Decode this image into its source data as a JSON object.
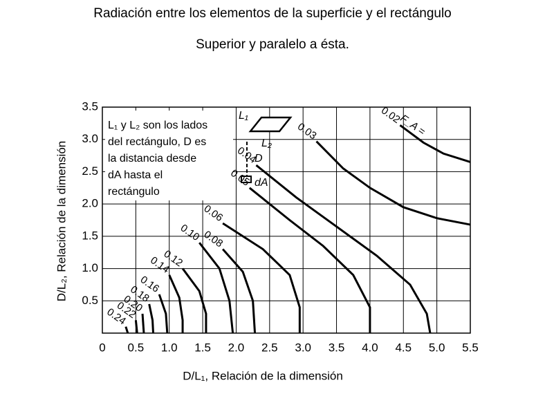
{
  "chart_data": {
    "type": "contour",
    "title": "Radiación entre los elementos de la superficie y el rectángulo",
    "subtitle": "Superior y paralelo a ésta.",
    "x_label": "D/L₁, Relación de la dimensión",
    "y_label": "D/L₂, Relación de la dimensión",
    "annotation": [
      "L₁ y L₂ son los lados",
      "del rectángulo, D es",
      "la distancia desde",
      "dA hasta el",
      "rectángulo"
    ],
    "diagram_labels": [
      "L₁",
      "L₂",
      "D",
      "dA"
    ],
    "curve_prefix": "F_A =",
    "color": "#000000",
    "grid": true,
    "xlim": [
      0,
      5.5
    ],
    "ylim": [
      0,
      3.5
    ],
    "xticks": [
      0,
      0.5,
      {
        "value": 1,
        "label": "1.0"
      },
      1.5,
      {
        "value": 2,
        "label": "2.0"
      },
      2.5,
      {
        "value": 3,
        "label": "3.0"
      },
      3.5,
      {
        "value": 4,
        "label": "4.0"
      },
      4.5,
      {
        "value": 5,
        "label": "5.0"
      },
      5.5
    ],
    "yticks": [
      0.5,
      {
        "value": 1,
        "label": "1.0"
      },
      1.5,
      {
        "value": 2,
        "label": "2.0"
      },
      2.5,
      {
        "value": 3,
        "label": "3.0"
      },
      3.5
    ],
    "series": [
      {
        "name": "0.02",
        "x": [
          4.45,
          4.8,
          5.1,
          5.5
        ],
        "y": [
          3.22,
          2.95,
          2.78,
          2.65
        ]
      },
      {
        "name": "0.03",
        "x": [
          3.2,
          3.6,
          4.0,
          4.5,
          5.0,
          5.5
        ],
        "y": [
          2.97,
          2.55,
          2.25,
          1.95,
          1.78,
          1.68
        ]
      },
      {
        "name": "0.04",
        "x": [
          2.3,
          2.9,
          3.5,
          4.1,
          4.6,
          4.85,
          4.9
        ],
        "y": [
          2.6,
          2.1,
          1.65,
          1.2,
          0.75,
          0.3,
          0
        ]
      },
      {
        "name": "0.05",
        "x": [
          2.2,
          2.8,
          3.3,
          3.75,
          4.0,
          4.0
        ],
        "y": [
          2.25,
          1.75,
          1.35,
          0.9,
          0.4,
          0
        ]
      },
      {
        "name": "0.06",
        "x": [
          1.8,
          2.4,
          2.8,
          2.95,
          2.95
        ],
        "y": [
          1.7,
          1.3,
          0.9,
          0.4,
          0
        ]
      },
      {
        "name": "0.08",
        "x": [
          1.8,
          2.1,
          2.25,
          2.28
        ],
        "y": [
          1.3,
          0.95,
          0.5,
          0
        ]
      },
      {
        "name": "0.10",
        "x": [
          1.45,
          1.75,
          1.9,
          1.95
        ],
        "y": [
          1.4,
          1.0,
          0.5,
          0
        ]
      },
      {
        "name": "0.12",
        "x": [
          1.2,
          1.45,
          1.55,
          1.55
        ],
        "y": [
          1.0,
          0.65,
          0.3,
          0
        ]
      },
      {
        "name": "0.14",
        "x": [
          1.0,
          1.15,
          1.2,
          1.2
        ],
        "y": [
          0.9,
          0.55,
          0.2,
          0
        ]
      },
      {
        "name": "0.16",
        "x": [
          0.85,
          0.95,
          0.97
        ],
        "y": [
          0.6,
          0.3,
          0
        ]
      },
      {
        "name": "0.18",
        "x": [
          0.7,
          0.75,
          0.76
        ],
        "y": [
          0.45,
          0.2,
          0
        ]
      },
      {
        "name": "0.20",
        "x": [
          0.6,
          0.62
        ],
        "y": [
          0.3,
          0
        ]
      },
      {
        "name": "0.22",
        "x": [
          0.5,
          0.52
        ],
        "y": [
          0.2,
          0
        ]
      },
      {
        "name": "0.24",
        "x": [
          0.35,
          0.38
        ],
        "y": [
          0.1,
          0
        ]
      }
    ]
  }
}
